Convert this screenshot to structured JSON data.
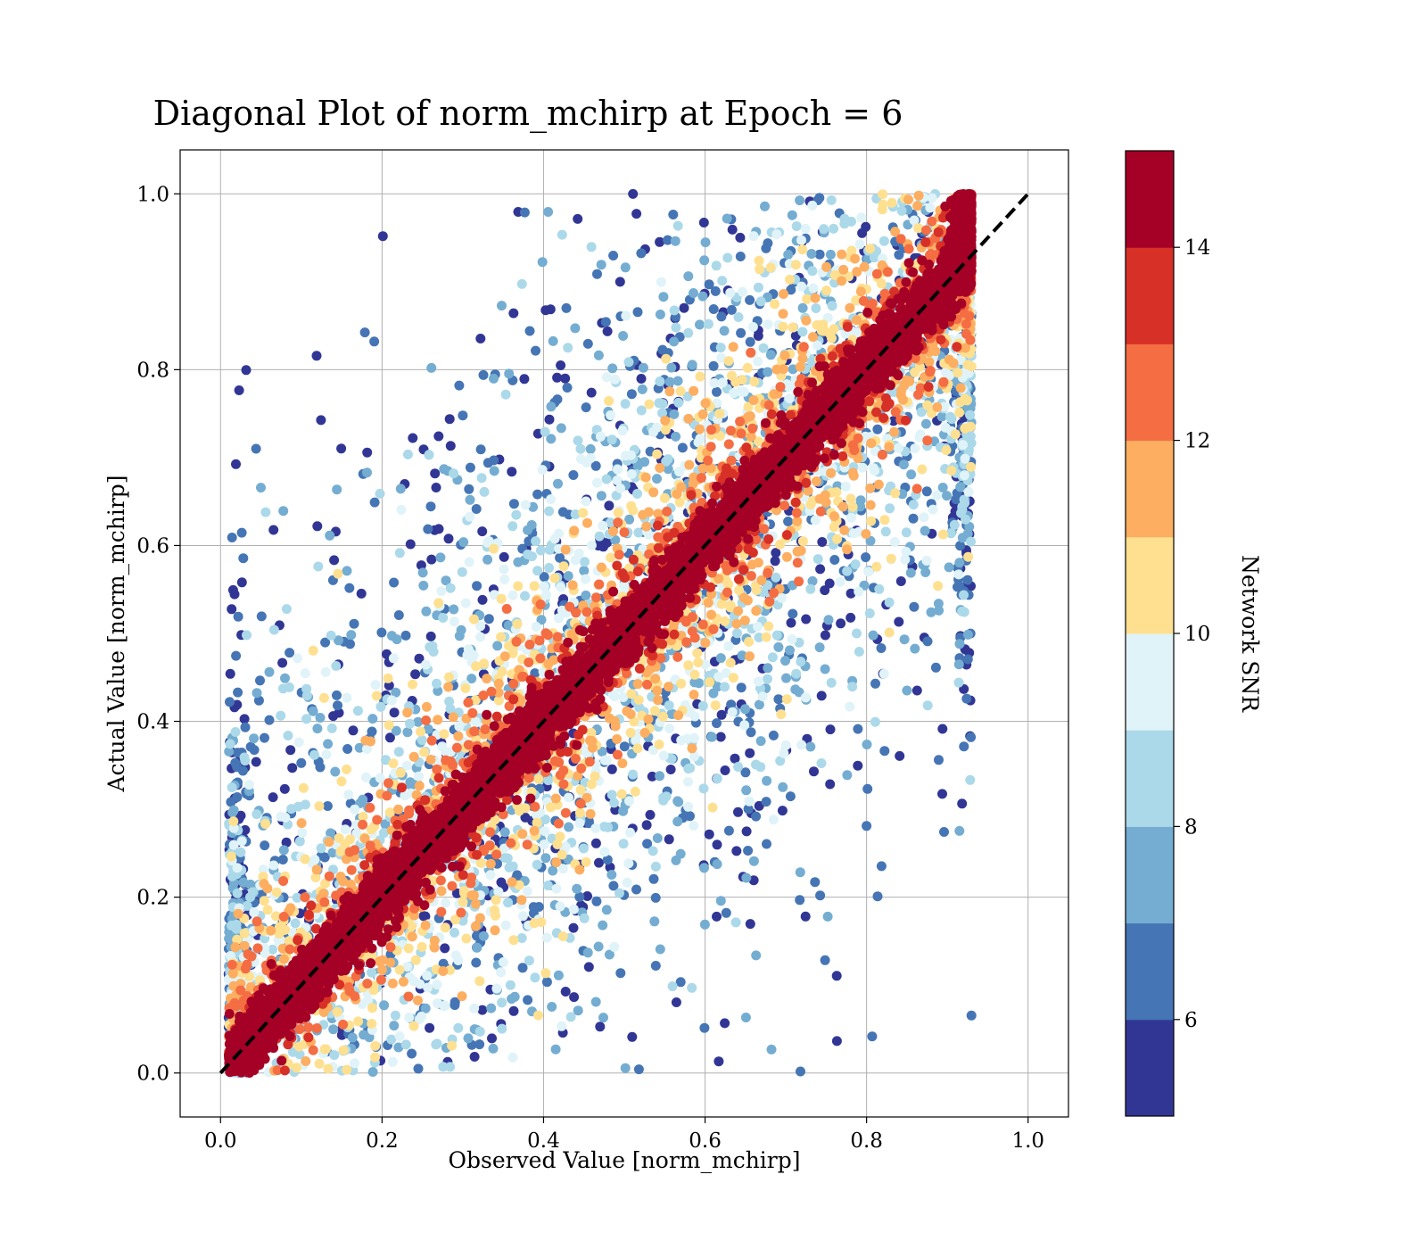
{
  "chart_data": {
    "type": "scatter",
    "title": "Diagonal Plot of norm_mchirp at Epoch = 6",
    "xlabel": "Observed Value [norm_mchirp]",
    "ylabel": "Actual Value [norm_mchirp]",
    "xlim": [
      -0.05,
      1.05
    ],
    "ylim": [
      -0.05,
      1.05
    ],
    "xticks": [
      "0.0",
      "0.2",
      "0.4",
      "0.6",
      "0.8",
      "1.0"
    ],
    "yticks": [
      "0.0",
      "0.2",
      "0.4",
      "0.6",
      "0.8",
      "1.0"
    ],
    "grid": true,
    "reference_line": {
      "style": "dashed",
      "color": "#000000",
      "from": [
        0,
        0
      ],
      "to": [
        1,
        1
      ]
    },
    "colorbar": {
      "label": "Network SNR",
      "range": [
        5,
        15
      ],
      "ticks": [
        "6",
        "8",
        "10",
        "12",
        "14"
      ],
      "levels": [
        {
          "from": 5,
          "to": 6,
          "color": "#313695"
        },
        {
          "from": 6,
          "to": 7,
          "color": "#4575b4"
        },
        {
          "from": 7,
          "to": 8,
          "color": "#74add1"
        },
        {
          "from": 8,
          "to": 9,
          "color": "#abd9e9"
        },
        {
          "from": 9,
          "to": 10,
          "color": "#e0f3f8"
        },
        {
          "from": 10,
          "to": 11,
          "color": "#fee090"
        },
        {
          "from": 11,
          "to": 12,
          "color": "#fdae61"
        },
        {
          "from": 12,
          "to": 13,
          "color": "#f46d43"
        },
        {
          "from": 13,
          "to": 14,
          "color": "#d73027"
        },
        {
          "from": 14,
          "to": 15,
          "color": "#a50026"
        }
      ]
    },
    "series_description": {
      "x_range_observed": [
        0.0,
        0.93
      ],
      "y_range_actual": [
        0.0,
        1.0
      ],
      "high_snr_band": "points with SNR >= 14 lie close to the diagonal y = x",
      "low_snr_spread": "points with SNR < 8 are widely scattered above and below the diagonal"
    }
  }
}
